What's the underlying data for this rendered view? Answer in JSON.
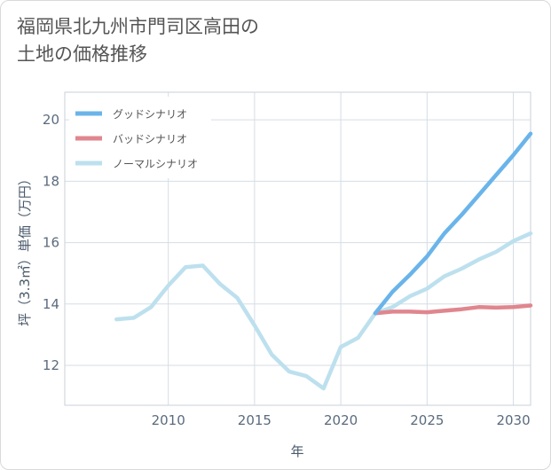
{
  "title_line1": "福岡県北九州市門司区高田の",
  "title_line2": "土地の価格推移",
  "chart_data": {
    "type": "line",
    "title": "福岡県北九州市門司区高田の土地の価格推移",
    "xlabel": "年",
    "ylabel": "坪（3.3㎡）単価（万円）",
    "xlim": [
      2004,
      2031
    ],
    "ylim": [
      10.7,
      20.9
    ],
    "xticks": [
      2010,
      2015,
      2020,
      2025,
      2030
    ],
    "xtick_labels": [
      "2010",
      "2015",
      "2020",
      "2025",
      "2030"
    ],
    "yticks": [
      12,
      14,
      16,
      18,
      20
    ],
    "ytick_labels": [
      "12",
      "14",
      "16",
      "18",
      "20"
    ],
    "grid": true,
    "legend_position": "top-left",
    "series": [
      {
        "name": "グッドシナリオ",
        "color": "#6ab4ea",
        "x": [
          2022,
          2023,
          2024,
          2025,
          2026,
          2027,
          2028,
          2029,
          2030,
          2031
        ],
        "y": [
          13.7,
          14.4,
          14.95,
          15.55,
          16.3,
          16.9,
          17.55,
          18.2,
          18.85,
          19.55
        ]
      },
      {
        "name": "バッドシナリオ",
        "color": "#e0868e",
        "x": [
          2022,
          2023,
          2024,
          2025,
          2026,
          2027,
          2028,
          2029,
          2030,
          2031
        ],
        "y": [
          13.7,
          13.75,
          13.75,
          13.73,
          13.78,
          13.83,
          13.9,
          13.88,
          13.9,
          13.95
        ]
      },
      {
        "name": "ノーマルシナリオ",
        "color": "#bde0ee",
        "x": [
          2007,
          2008,
          2009,
          2010,
          2011,
          2012,
          2013,
          2014,
          2015,
          2016,
          2017,
          2018,
          2019,
          2020,
          2021,
          2022,
          2023,
          2024,
          2025,
          2026,
          2027,
          2028,
          2029,
          2030,
          2031
        ],
        "y": [
          13.5,
          13.55,
          13.9,
          14.6,
          15.2,
          15.25,
          14.65,
          14.2,
          13.3,
          12.35,
          11.8,
          11.65,
          11.25,
          12.6,
          12.9,
          13.7,
          13.9,
          14.25,
          14.5,
          14.9,
          15.15,
          15.45,
          15.7,
          16.05,
          16.3
        ]
      }
    ]
  }
}
